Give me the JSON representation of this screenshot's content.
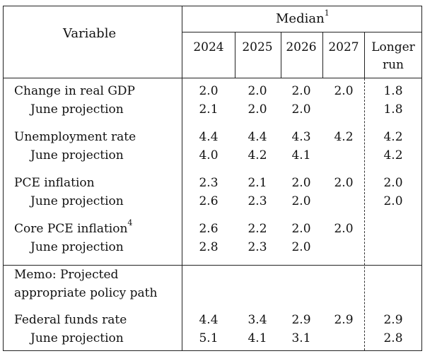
{
  "header": {
    "variable": "Variable",
    "median": "Median",
    "median_sup": "1",
    "years": [
      "2024",
      "2025",
      "2026",
      "2027"
    ],
    "longer_run_line1": "Longer",
    "longer_run_line2": "run"
  },
  "rows": [
    {
      "label": "Change in real GDP",
      "sup": "",
      "values": [
        "2.0",
        "2.0",
        "2.0",
        "2.0",
        "1.8"
      ]
    },
    {
      "label": "June projection",
      "sup": "",
      "values": [
        "2.1",
        "2.0",
        "2.0",
        "",
        "1.8"
      ]
    },
    {
      "label": "Unemployment rate",
      "sup": "",
      "values": [
        "4.4",
        "4.4",
        "4.3",
        "4.2",
        "4.2"
      ]
    },
    {
      "label": "June projection",
      "sup": "",
      "values": [
        "4.0",
        "4.2",
        "4.1",
        "",
        "4.2"
      ]
    },
    {
      "label": "PCE inflation",
      "sup": "",
      "values": [
        "2.3",
        "2.1",
        "2.0",
        "2.0",
        "2.0"
      ]
    },
    {
      "label": "June projection",
      "sup": "",
      "values": [
        "2.6",
        "2.3",
        "2.0",
        "",
        "2.0"
      ]
    },
    {
      "label": "Core PCE inflation",
      "sup": "4",
      "values": [
        "2.6",
        "2.2",
        "2.0",
        "2.0",
        ""
      ]
    },
    {
      "label": "June projection",
      "sup": "",
      "values": [
        "2.8",
        "2.3",
        "2.0",
        "",
        ""
      ]
    }
  ],
  "memo": {
    "line1": "Memo: Projected",
    "line2": "appropriate policy path"
  },
  "policy_rows": [
    {
      "label": "Federal funds rate",
      "values": [
        "4.4",
        "3.4",
        "2.9",
        "2.9",
        "2.9"
      ]
    },
    {
      "label": "June projection",
      "values": [
        "5.1",
        "4.1",
        "3.1",
        "",
        "2.8"
      ]
    }
  ]
}
